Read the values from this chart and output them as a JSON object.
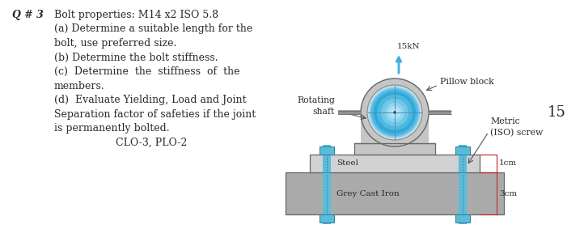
{
  "bg_color": "#ffffff",
  "text_color": "#2a2a2a",
  "line_q": "Q # 3",
  "line_title": "Bolt properties: M14 x2 ISO 5.8",
  "line_a1": "(a) Determine a suitable length for the",
  "line_a2": "bolt, use preferred size.",
  "line_b": "(b) Determine the bolt stiffness.",
  "line_c1": "(c)  Determine  the  stiffness  of  the",
  "line_c2": "members.",
  "line_d1": "(d)  Evaluate Yielding, Load and Joint",
  "line_d2": "Separation factor of safeties if the joint",
  "line_d3": "is permanently bolted.",
  "line_clo": "CLO-3, PLO-2",
  "label_rotating": "Rotating\nshaft",
  "label_pillow": "Pillow block",
  "label_metric": "Metric\n(ISO) screw",
  "label_15kn": "15kN",
  "label_steel": "Steel",
  "label_gci": "Grey Cast Iron",
  "label_1cm": "1cm",
  "label_3cm": "3cm",
  "label_15": "15",
  "steel_color": "#d2d2d2",
  "gci_color": "#aaaaaa",
  "bolt_color": "#5bbcda",
  "bolt_edge": "#2a7a9a",
  "pillow_color": "#c5c5c5",
  "pillow_edge": "#666666",
  "shaft_blue_outer": "#90ccee",
  "shaft_blue_mid": "#3ab0e0",
  "shaft_blue_inner": "#88d4f4",
  "arrow_blue": "#3ab0e0",
  "dim_color": "#cc2222",
  "font_size_main": 9.0,
  "font_size_label": 7.8,
  "font_size_dim": 7.5,
  "font_size_15": 13
}
